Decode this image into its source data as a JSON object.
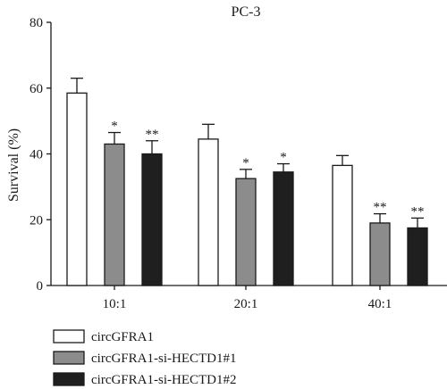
{
  "chart_data": {
    "type": "bar",
    "title": "PC-3",
    "ylabel": "Survival (%)",
    "xlabel": "",
    "ylim": [
      0,
      80
    ],
    "yticks": [
      0,
      20,
      40,
      60,
      80
    ],
    "categories": [
      "10:1",
      "20:1",
      "40:1"
    ],
    "series": [
      {
        "name": "circGFRA1",
        "color": "#ffffff",
        "values": [
          58.5,
          44.5,
          36.5
        ],
        "errors": [
          4.5,
          4.5,
          3.0
        ],
        "significance": [
          "",
          "",
          ""
        ]
      },
      {
        "name": "circGFRA1-si-HECTD1#1",
        "color": "#8c8c8c",
        "values": [
          43.0,
          32.5,
          19.0
        ],
        "errors": [
          3.5,
          2.8,
          2.8
        ],
        "significance": [
          "*",
          "*",
          "**"
        ]
      },
      {
        "name": "circGFRA1-si-HECTD1#2",
        "color": "#1f1f1f",
        "values": [
          40.0,
          34.5,
          17.5
        ],
        "errors": [
          4.0,
          2.5,
          3.0
        ],
        "significance": [
          "**",
          "*",
          "**"
        ]
      }
    ],
    "legend_position": "bottom-left"
  }
}
